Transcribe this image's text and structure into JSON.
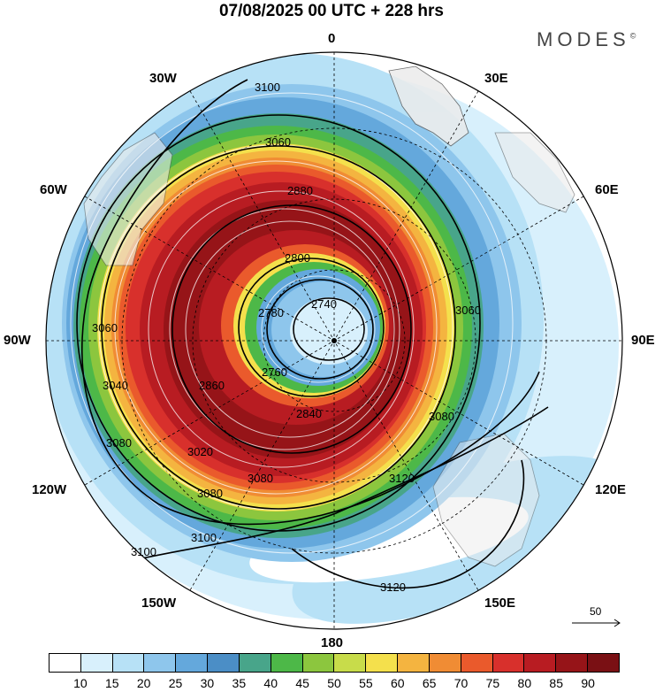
{
  "title": "07/08/2025  00 UTC  + 228 hrs",
  "brand": "MODES",
  "brand_mark": "©",
  "longitude_labels": {
    "top": "0",
    "bottom": "180",
    "left": "90W",
    "right": "90E",
    "upper_left": "30W",
    "upper_right": "30E",
    "left_upper": "60W",
    "right_upper": "60E",
    "left_lower": "120W",
    "right_lower": "120E",
    "lower_left": "150W",
    "lower_right": "150E"
  },
  "contour_labels": [
    "3100",
    "3060",
    "3060",
    "3080",
    "3040",
    "3080",
    "3100",
    "3120",
    "3120",
    "3080",
    "3060",
    "2800",
    "2740",
    "2780",
    "2760",
    "2860",
    "2840",
    "2880",
    "3020",
    "3080",
    "3100"
  ],
  "legend": {
    "ticks": [
      "10",
      "15",
      "20",
      "25",
      "30",
      "35",
      "40",
      "45",
      "50",
      "55",
      "60",
      "65",
      "70",
      "75",
      "80",
      "85",
      "90"
    ],
    "colors": [
      "#ffffff",
      "#d8f0fc",
      "#b7e1f6",
      "#8ec6ec",
      "#64a8dc",
      "#4b8ec6",
      "#48a58a",
      "#4db848",
      "#8cc63e",
      "#c8dc4a",
      "#f4e04c",
      "#f4b440",
      "#f08c34",
      "#ea5a2c",
      "#d8302c",
      "#b81c22",
      "#961418",
      "#7a1014"
    ]
  },
  "vector_scale": "50",
  "colors": {
    "land": "#ececec",
    "contour": "#000000",
    "streamline": "#ffffff"
  }
}
